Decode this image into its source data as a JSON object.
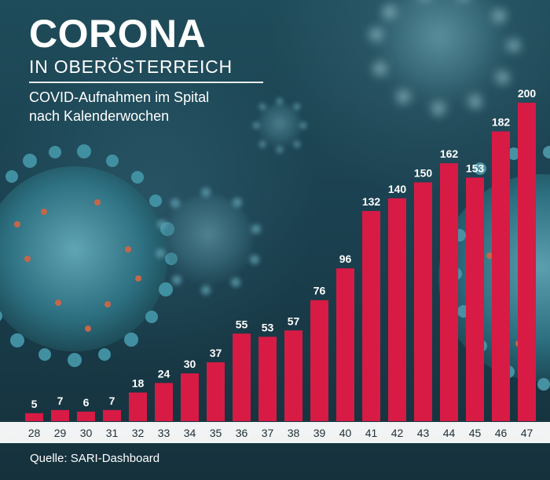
{
  "header": {
    "title": "CORONA",
    "subtitle": "IN OBERÖSTERREICH",
    "description_line_1": "COVID-Aufnahmen im Spital",
    "description_line_2": "nach Kalenderwochen"
  },
  "footer": {
    "source": "Quelle: SARI-Dashboard"
  },
  "colors": {
    "background": "#1b4150",
    "bar": "#d71b45",
    "axis_band": "#f3f3f3",
    "text_light": "#ffffff",
    "text_dark": "#1d2e36",
    "virus_teal": "#3f8fa0",
    "virus_orange": "#cc6c4b"
  },
  "chart_data": {
    "type": "bar",
    "title": "",
    "xlabel": "",
    "ylabel": "",
    "ylim": [
      0,
      200
    ],
    "grid": false,
    "legend": "none",
    "categories": [
      "28",
      "29",
      "30",
      "31",
      "32",
      "33",
      "34",
      "35",
      "36",
      "37",
      "38",
      "39",
      "40",
      "41",
      "42",
      "43",
      "44",
      "45",
      "46",
      "47"
    ],
    "values": [
      5,
      7,
      6,
      7,
      18,
      24,
      30,
      37,
      55,
      53,
      57,
      76,
      96,
      132,
      140,
      150,
      162,
      153,
      182,
      200
    ]
  }
}
